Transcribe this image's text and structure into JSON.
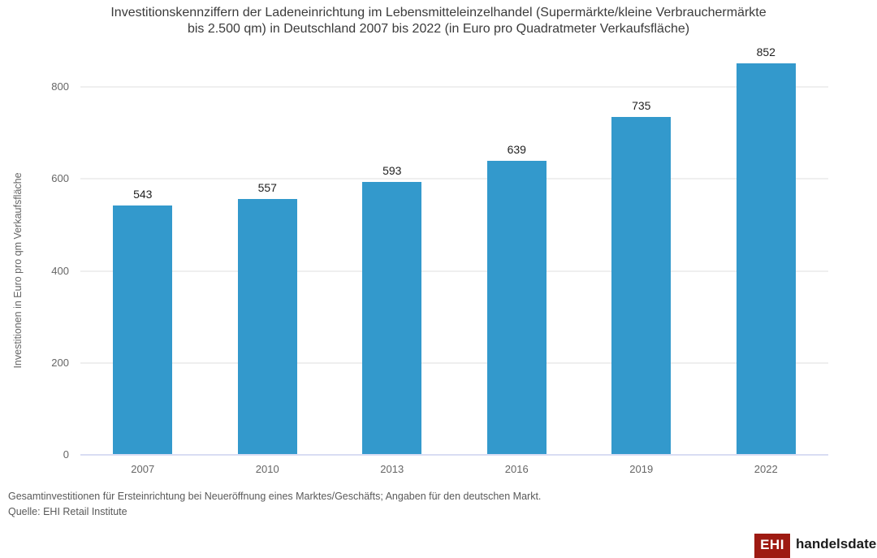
{
  "title_lines": [
    "Investitionskennziffern der Ladeneinrichtung im Lebensmitteleinzelhandel (Supermärkte/kleine Verbrauchermärkte",
    "bis 2.500 qm) in Deutschland 2007 bis 2022 (in Euro pro Quadratmeter Verkaufsfläche)"
  ],
  "chart_data": {
    "type": "bar",
    "title": "Investitionskennziffern der Ladeneinrichtung im Lebensmitteleinzelhandel (Supermärkte/kleine Verbrauchermärkte bis 2.500 qm) in Deutschland 2007 bis 2022 (in Euro pro Quadratmeter Verkaufsfläche)",
    "categories": [
      "2007",
      "2010",
      "2013",
      "2016",
      "2019",
      "2022"
    ],
    "values": [
      543,
      557,
      593,
      639,
      735,
      852
    ],
    "xlabel": "",
    "ylabel": "Investitionen in Euro pro qm Verkaufsfläche",
    "ylim": [
      0,
      880
    ],
    "yticks": [
      0,
      200,
      400,
      600,
      800
    ],
    "grid": true,
    "legend": "none",
    "bar_color": "#3399cc",
    "value_labels": [
      "543",
      "557",
      "593",
      "639",
      "735",
      "852"
    ]
  },
  "footnote": {
    "line1": "Gesamtinvestitionen für Ersteinrichtung bei Neueröffnung eines Marktes/Geschäfts; Angaben für den deutschen Markt.",
    "line2": "Quelle: EHI Retail Institute"
  },
  "logo": {
    "mark": "EHI",
    "wordmark": "handelsdaten.de",
    "mark_color": "#9e1a12"
  }
}
